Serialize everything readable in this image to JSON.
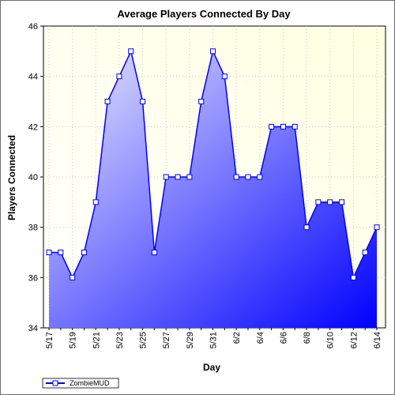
{
  "chart_data": {
    "type": "area",
    "title": "Average Players Connected By Day",
    "xlabel": "Day",
    "ylabel": "Players Connected",
    "ylim": [
      34,
      46
    ],
    "y_ticks": [
      "34",
      "36",
      "38",
      "40",
      "42",
      "44",
      "46"
    ],
    "x": [
      "5/17",
      "5/18",
      "5/19",
      "5/20",
      "5/21",
      "5/22",
      "5/23",
      "5/24",
      "5/25",
      "5/26",
      "5/27",
      "5/28",
      "5/29",
      "5/30",
      "5/31",
      "6/1",
      "6/2",
      "6/3",
      "6/4",
      "6/5",
      "6/6",
      "6/7",
      "6/8",
      "6/9",
      "6/10",
      "6/11",
      "6/12",
      "6/13",
      "6/14"
    ],
    "x_tick_labels": [
      "5/17",
      "5/19",
      "5/21",
      "5/23",
      "5/25",
      "5/27",
      "5/29",
      "5/31",
      "6/2",
      "6/4",
      "6/6",
      "6/8",
      "6/10",
      "6/12",
      "6/14"
    ],
    "series": [
      {
        "name": "ZombieMUD",
        "values": [
          37,
          37,
          36,
          37,
          39,
          43,
          44,
          45,
          43,
          37,
          40,
          40,
          40,
          43,
          45,
          44,
          40,
          40,
          40,
          42,
          42,
          42,
          38,
          39,
          39,
          39,
          36,
          37,
          38
        ]
      }
    ],
    "grid": true,
    "legend_position": "bottom-left",
    "colors": {
      "line": "#0000ff",
      "fill_light": "#ebebff",
      "fill_dark": "#0000ff",
      "plot_bg_light": "#ffffe0",
      "plot_bg_white": "#ffffff",
      "grid": "#c8c8c8"
    }
  }
}
